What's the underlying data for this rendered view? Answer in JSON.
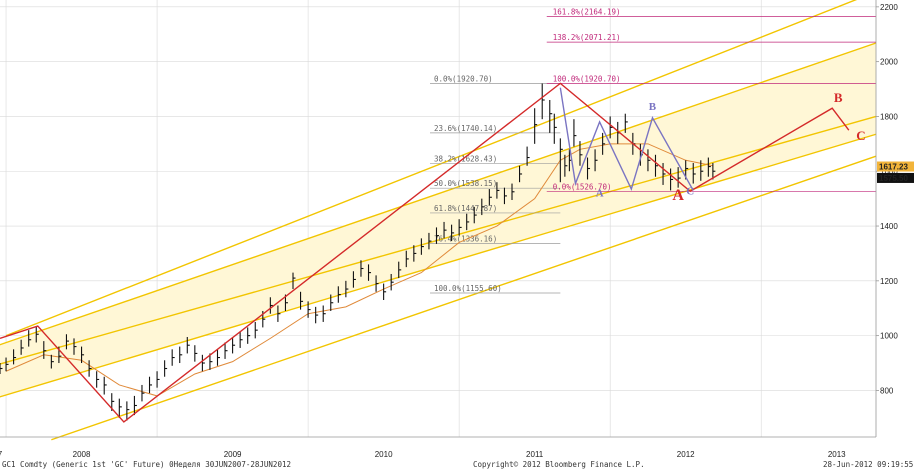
{
  "chart_data": {
    "type": "line",
    "title": "",
    "xlabel": "",
    "ylabel": "",
    "colors": {
      "background": "#ffffff",
      "grid": "#d9d9d9",
      "channel": "#f2c500",
      "channel_fill": "#fff7d6",
      "zigzag": "#d42a2a",
      "abc_pattern": "#7a74c2",
      "fib_upper": "#c0287a",
      "fib_lower": "#9c9c9c",
      "price": "#111111",
      "ma": "#e08a3a"
    },
    "x_axis": {
      "tick_labels": [
        "7",
        "2008",
        "2009",
        "2010",
        "2011",
        "2012",
        "2013"
      ],
      "tick_times": [
        2007.96,
        2008.5,
        2009.5,
        2010.5,
        2011.5,
        2012.5,
        2013.5
      ],
      "x_range": [
        2007.96,
        2013.76
      ],
      "gridlines": [
        2008.0,
        2009.0,
        2010.0,
        2011.0,
        2012.0,
        2013.0
      ]
    },
    "y_axis": {
      "tick_labels": [
        "800",
        "1000",
        "1200",
        "1400",
        "1600",
        "1800",
        "2000",
        "2200"
      ],
      "y_range": [
        630,
        2225
      ],
      "gridlines": [
        800,
        1000,
        1200,
        1400,
        1600,
        1800,
        2000,
        2200
      ],
      "position": "right"
    },
    "price_tags": [
      {
        "label": "1617.23",
        "value": 1617.23,
        "color": "#f2b43a"
      },
      {
        "label": "1575.50",
        "value": 1575.5,
        "color": "#111111"
      }
    ],
    "fib_retracement": [
      {
        "label": "0.0%(1920.70)",
        "value": 1920.7
      },
      {
        "label": "23.6%(1740.14)",
        "value": 1740.14
      },
      {
        "label": "38.2%(1628.43)",
        "value": 1628.43
      },
      {
        "label": "50.0%(1538.15)",
        "value": 1538.15
      },
      {
        "label": "61.8%(1447.87)",
        "value": 1447.87
      },
      {
        "label": "76.4%(1336.16)",
        "value": 1336.16
      },
      {
        "label": "100.0%(1155.60)",
        "value": 1155.6
      }
    ],
    "fib_extension": [
      {
        "label": "161.8%(2164.19)",
        "value": 2164.19
      },
      {
        "label": "138.2%(2071.21)",
        "value": 2071.21
      },
      {
        "label": "100.0%(1920.70)",
        "value": 1920.7
      },
      {
        "label": "0.0%(1526.70)",
        "value": 1526.7
      }
    ],
    "channels": [
      {
        "name": "inner",
        "start": [
          2007.95,
          965
        ],
        "end": [
          2013.76,
          2068
        ]
      },
      {
        "name": "upper",
        "start": [
          2008.0,
          1000
        ],
        "end": [
          2013.76,
          2255
        ]
      },
      {
        "name": "lower",
        "start": [
          2007.95,
          775
        ],
        "end": [
          2013.76,
          1735
        ]
      },
      {
        "name": "lower-outer",
        "start": [
          2008.3,
          620
        ],
        "end": [
          2013.76,
          1655
        ]
      },
      {
        "name": "center",
        "start": [
          2007.95,
          895
        ],
        "end": [
          2013.76,
          1800
        ]
      }
    ],
    "zigzag": [
      {
        "x": 2007.96,
        "y": 990
      },
      {
        "x": 2008.21,
        "y": 1035
      },
      {
        "x": 2008.78,
        "y": 685
      },
      {
        "x": 2011.67,
        "y": 1920.7
      },
      {
        "x": 2012.53,
        "y": 1527
      },
      {
        "x": 2013.47,
        "y": 1830
      },
      {
        "x": 2013.58,
        "y": 1750
      }
    ],
    "abc_pattern": [
      {
        "x": 2011.67,
        "y": 1905
      },
      {
        "x": 2011.77,
        "y": 1555
      },
      {
        "x": 2011.93,
        "y": 1780
      },
      {
        "x": 2012.14,
        "y": 1535
      },
      {
        "x": 2012.28,
        "y": 1795
      },
      {
        "x": 2012.55,
        "y": 1530
      }
    ],
    "wave_labels": [
      {
        "text": "A",
        "x": 2012.45,
        "y": 1495,
        "color": "#d42a2a",
        "size": 16
      },
      {
        "text": "B",
        "x": 2013.51,
        "y": 1852,
        "color": "#d42a2a",
        "size": 13
      },
      {
        "text": "C",
        "x": 2013.66,
        "y": 1714,
        "color": "#d42a2a",
        "size": 13
      },
      {
        "text": "A",
        "x": 2011.93,
        "y": 1508,
        "color": "#7a74c2",
        "size": 11
      },
      {
        "text": "B",
        "x": 2012.28,
        "y": 1823,
        "color": "#7a74c2",
        "size": 11
      },
      {
        "text": "C",
        "x": 2012.53,
        "y": 1516,
        "color": "#7a74c2",
        "size": 11
      }
    ],
    "series": [
      {
        "name": "",
        "style": "ohlc",
        "x": [
          2007.96,
          2008.0,
          2008.05,
          2008.1,
          2008.15,
          2008.2,
          2008.25,
          2008.3,
          2008.35,
          2008.4,
          2008.45,
          2008.5,
          2008.55,
          2008.6,
          2008.65,
          2008.7,
          2008.75,
          2008.8,
          2008.85,
          2008.9,
          2008.95,
          2009.0,
          2009.05,
          2009.1,
          2009.15,
          2009.2,
          2009.25,
          2009.3,
          2009.35,
          2009.4,
          2009.45,
          2009.5,
          2009.55,
          2009.6,
          2009.65,
          2009.7,
          2009.75,
          2009.8,
          2009.85,
          2009.9,
          2009.95,
          2010.0,
          2010.05,
          2010.1,
          2010.15,
          2010.2,
          2010.25,
          2010.3,
          2010.35,
          2010.4,
          2010.45,
          2010.5,
          2010.55,
          2010.6,
          2010.65,
          2010.7,
          2010.75,
          2010.8,
          2010.85,
          2010.9,
          2010.95,
          2011.0,
          2011.05,
          2011.1,
          2011.15,
          2011.2,
          2011.25,
          2011.3,
          2011.35,
          2011.4,
          2011.45,
          2011.5,
          2011.55,
          2011.6,
          2011.63,
          2011.67,
          2011.7,
          2011.73,
          2011.76,
          2011.8,
          2011.85,
          2011.9,
          2011.95,
          2012.0,
          2012.05,
          2012.1,
          2012.15,
          2012.2,
          2012.25,
          2012.3,
          2012.35,
          2012.4,
          2012.45,
          2012.5,
          2012.55,
          2012.6,
          2012.65,
          2012.68
        ],
        "close": [
          880,
          895,
          920,
          955,
          985,
          1005,
          945,
          905,
          925,
          980,
          960,
          930,
          880,
          840,
          820,
          760,
          740,
          730,
          745,
          790,
          820,
          840,
          880,
          920,
          930,
          965,
          935,
          900,
          905,
          920,
          945,
          965,
          985,
          1000,
          1020,
          1060,
          1110,
          1080,
          1120,
          1210,
          1125,
          1095,
          1075,
          1080,
          1120,
          1150,
          1170,
          1205,
          1245,
          1230,
          1190,
          1160,
          1195,
          1240,
          1280,
          1300,
          1325,
          1345,
          1365,
          1385,
          1375,
          1395,
          1415,
          1440,
          1470,
          1505,
          1530,
          1510,
          1525,
          1590,
          1650,
          1770,
          1860,
          1810,
          1760,
          1680,
          1620,
          1640,
          1730,
          1660,
          1610,
          1640,
          1700,
          1760,
          1740,
          1780,
          1700,
          1660,
          1640,
          1620,
          1590,
          1570,
          1575,
          1610,
          1590,
          1600,
          1617,
          1600
        ],
        "high": [
          900,
          920,
          950,
          985,
          1020,
          1035,
          980,
          930,
          960,
          1005,
          990,
          960,
          910,
          870,
          850,
          790,
          770,
          760,
          780,
          820,
          850,
          870,
          910,
          950,
          960,
          995,
          965,
          930,
          935,
          950,
          975,
          995,
          1015,
          1030,
          1050,
          1090,
          1140,
          1110,
          1150,
          1230,
          1160,
          1125,
          1105,
          1110,
          1150,
          1180,
          1200,
          1235,
          1275,
          1260,
          1220,
          1190,
          1225,
          1270,
          1310,
          1330,
          1355,
          1375,
          1395,
          1415,
          1405,
          1425,
          1445,
          1470,
          1500,
          1535,
          1560,
          1540,
          1555,
          1620,
          1690,
          1830,
          1920,
          1860,
          1810,
          1720,
          1660,
          1680,
          1790,
          1710,
          1650,
          1680,
          1740,
          1800,
          1780,
          1810,
          1740,
          1700,
          1680,
          1660,
          1630,
          1610,
          1615,
          1640,
          1630,
          1640,
          1650,
          1630
        ],
        "low": [
          860,
          870,
          895,
          930,
          960,
          975,
          915,
          880,
          900,
          950,
          930,
          900,
          850,
          810,
          785,
          725,
          700,
          690,
          710,
          760,
          790,
          810,
          850,
          890,
          900,
          935,
          905,
          870,
          875,
          890,
          915,
          935,
          955,
          970,
          990,
          1030,
          1080,
          1050,
          1090,
          1170,
          1095,
          1065,
          1045,
          1050,
          1090,
          1120,
          1140,
          1175,
          1215,
          1200,
          1160,
          1130,
          1165,
          1210,
          1250,
          1270,
          1295,
          1315,
          1335,
          1355,
          1345,
          1365,
          1385,
          1410,
          1440,
          1475,
          1500,
          1480,
          1495,
          1560,
          1620,
          1700,
          1790,
          1740,
          1700,
          1560,
          1580,
          1600,
          1690,
          1620,
          1570,
          1600,
          1660,
          1720,
          1700,
          1740,
          1660,
          1620,
          1600,
          1580,
          1550,
          1530,
          1540,
          1570,
          1555,
          1565,
          1580,
          1570
        ]
      },
      {
        "name": "",
        "style": "line",
        "x": [
          2008.0,
          2008.25,
          2008.5,
          2008.75,
          2009.0,
          2009.25,
          2009.5,
          2009.75,
          2010.0,
          2010.25,
          2010.5,
          2010.75,
          2011.0,
          2011.25,
          2011.5,
          2011.67,
          2011.8,
          2012.0,
          2012.25,
          2012.5,
          2012.68
        ],
        "y": [
          870,
          930,
          910,
          820,
          780,
          860,
          905,
          990,
          1080,
          1105,
          1170,
          1230,
          1340,
          1400,
          1500,
          1640,
          1680,
          1700,
          1700,
          1640,
          1620
        ]
      }
    ]
  },
  "footer": {
    "left": "GC1 Comdty (Generic 1st 'GC' Future) 0Неделя 30JUN2007-28JUN2012",
    "center": "Copyright© 2012 Bloomberg Finance L.P.",
    "right": "28-Jun-2012 09:19:55"
  }
}
